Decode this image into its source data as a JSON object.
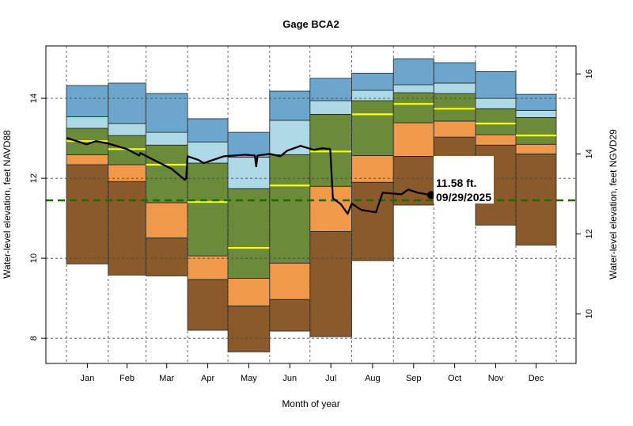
{
  "chart_data": {
    "type": "area",
    "title": "Gage BCA2",
    "xlabel": "Month of year",
    "ylabel": "Water-level elevation, feet NAVD88",
    "ylabel_right": "Water-level elevation, feet NGVD29",
    "xlim_day": [
      -14.3,
      379.7
    ],
    "ylim": [
      7.37,
      15.31
    ],
    "right_axis_offset": 1.39,
    "yticks": [
      8,
      10,
      12,
      14
    ],
    "yticks_right": [
      10,
      12,
      14,
      16
    ],
    "grid": true,
    "months": [
      "Jan",
      "Feb",
      "Mar",
      "Apr",
      "May",
      "Jun",
      "Jul",
      "Aug",
      "Sep",
      "Oct",
      "Nov",
      "Dec"
    ],
    "month_start_days": [
      1,
      32,
      60,
      91,
      121,
      152,
      182,
      213,
      244,
      274,
      305,
      335,
      365
    ],
    "colors": {
      "min_p10": "#8B5A2B",
      "p10_p25": "#F0994A",
      "p25_p75": "#6B8B3A",
      "p75_p90": "#ADD8E6",
      "p90_max": "#6CA6CD",
      "median": "#FFFF00",
      "reference": "#1A6B00",
      "current": "#000000"
    },
    "percentile_bands": {
      "min": [
        9.86,
        9.58,
        9.56,
        8.2,
        7.66,
        8.18,
        8.04,
        9.94,
        11.33,
        12.0,
        10.83,
        10.33
      ],
      "p10": [
        12.34,
        11.92,
        10.51,
        9.47,
        8.81,
        8.97,
        10.67,
        11.9,
        12.55,
        13.03,
        12.83,
        12.61
      ],
      "p25": [
        12.59,
        12.34,
        11.39,
        10.06,
        9.5,
        9.88,
        11.8,
        12.57,
        13.39,
        13.43,
        13.09,
        12.85
      ],
      "median": [
        12.93,
        12.73,
        12.34,
        11.41,
        10.26,
        11.82,
        12.67,
        13.6,
        13.86,
        13.74,
        13.37,
        13.07
      ],
      "p75": [
        13.25,
        13.07,
        12.83,
        12.38,
        11.74,
        12.59,
        13.6,
        13.94,
        14.14,
        14.12,
        13.74,
        13.52
      ],
      "p90": [
        13.54,
        13.37,
        13.15,
        12.91,
        12.53,
        13.45,
        13.94,
        14.2,
        14.34,
        14.38,
        14.0,
        13.7
      ],
      "max": [
        14.32,
        14.38,
        14.12,
        13.49,
        13.15,
        14.18,
        14.5,
        14.63,
        14.99,
        14.89,
        14.67,
        14.1
      ]
    },
    "reference_level": 11.45,
    "current_series": {
      "day": [
        1,
        16,
        23,
        32,
        46,
        55,
        56,
        67,
        79,
        89,
        90,
        91,
        99,
        103,
        118,
        134,
        141,
        142,
        143,
        152,
        160,
        165,
        175,
        185,
        191,
        197,
        199,
        205,
        210,
        213,
        220,
        231,
        236,
        250,
        255,
        262,
        272
      ],
      "value": [
        13.01,
        12.85,
        12.93,
        12.87,
        12.73,
        12.57,
        12.63,
        12.44,
        12.24,
        11.96,
        12.0,
        12.55,
        12.46,
        12.38,
        12.55,
        12.59,
        12.57,
        12.3,
        12.57,
        12.61,
        12.55,
        12.69,
        12.81,
        12.71,
        12.75,
        12.73,
        11.5,
        11.35,
        11.11,
        11.37,
        11.21,
        11.15,
        11.64,
        11.6,
        11.72,
        11.64,
        11.58
      ]
    },
    "annotation": {
      "value_label": "11.58 ft.",
      "date_label": "09/29/2025"
    }
  }
}
